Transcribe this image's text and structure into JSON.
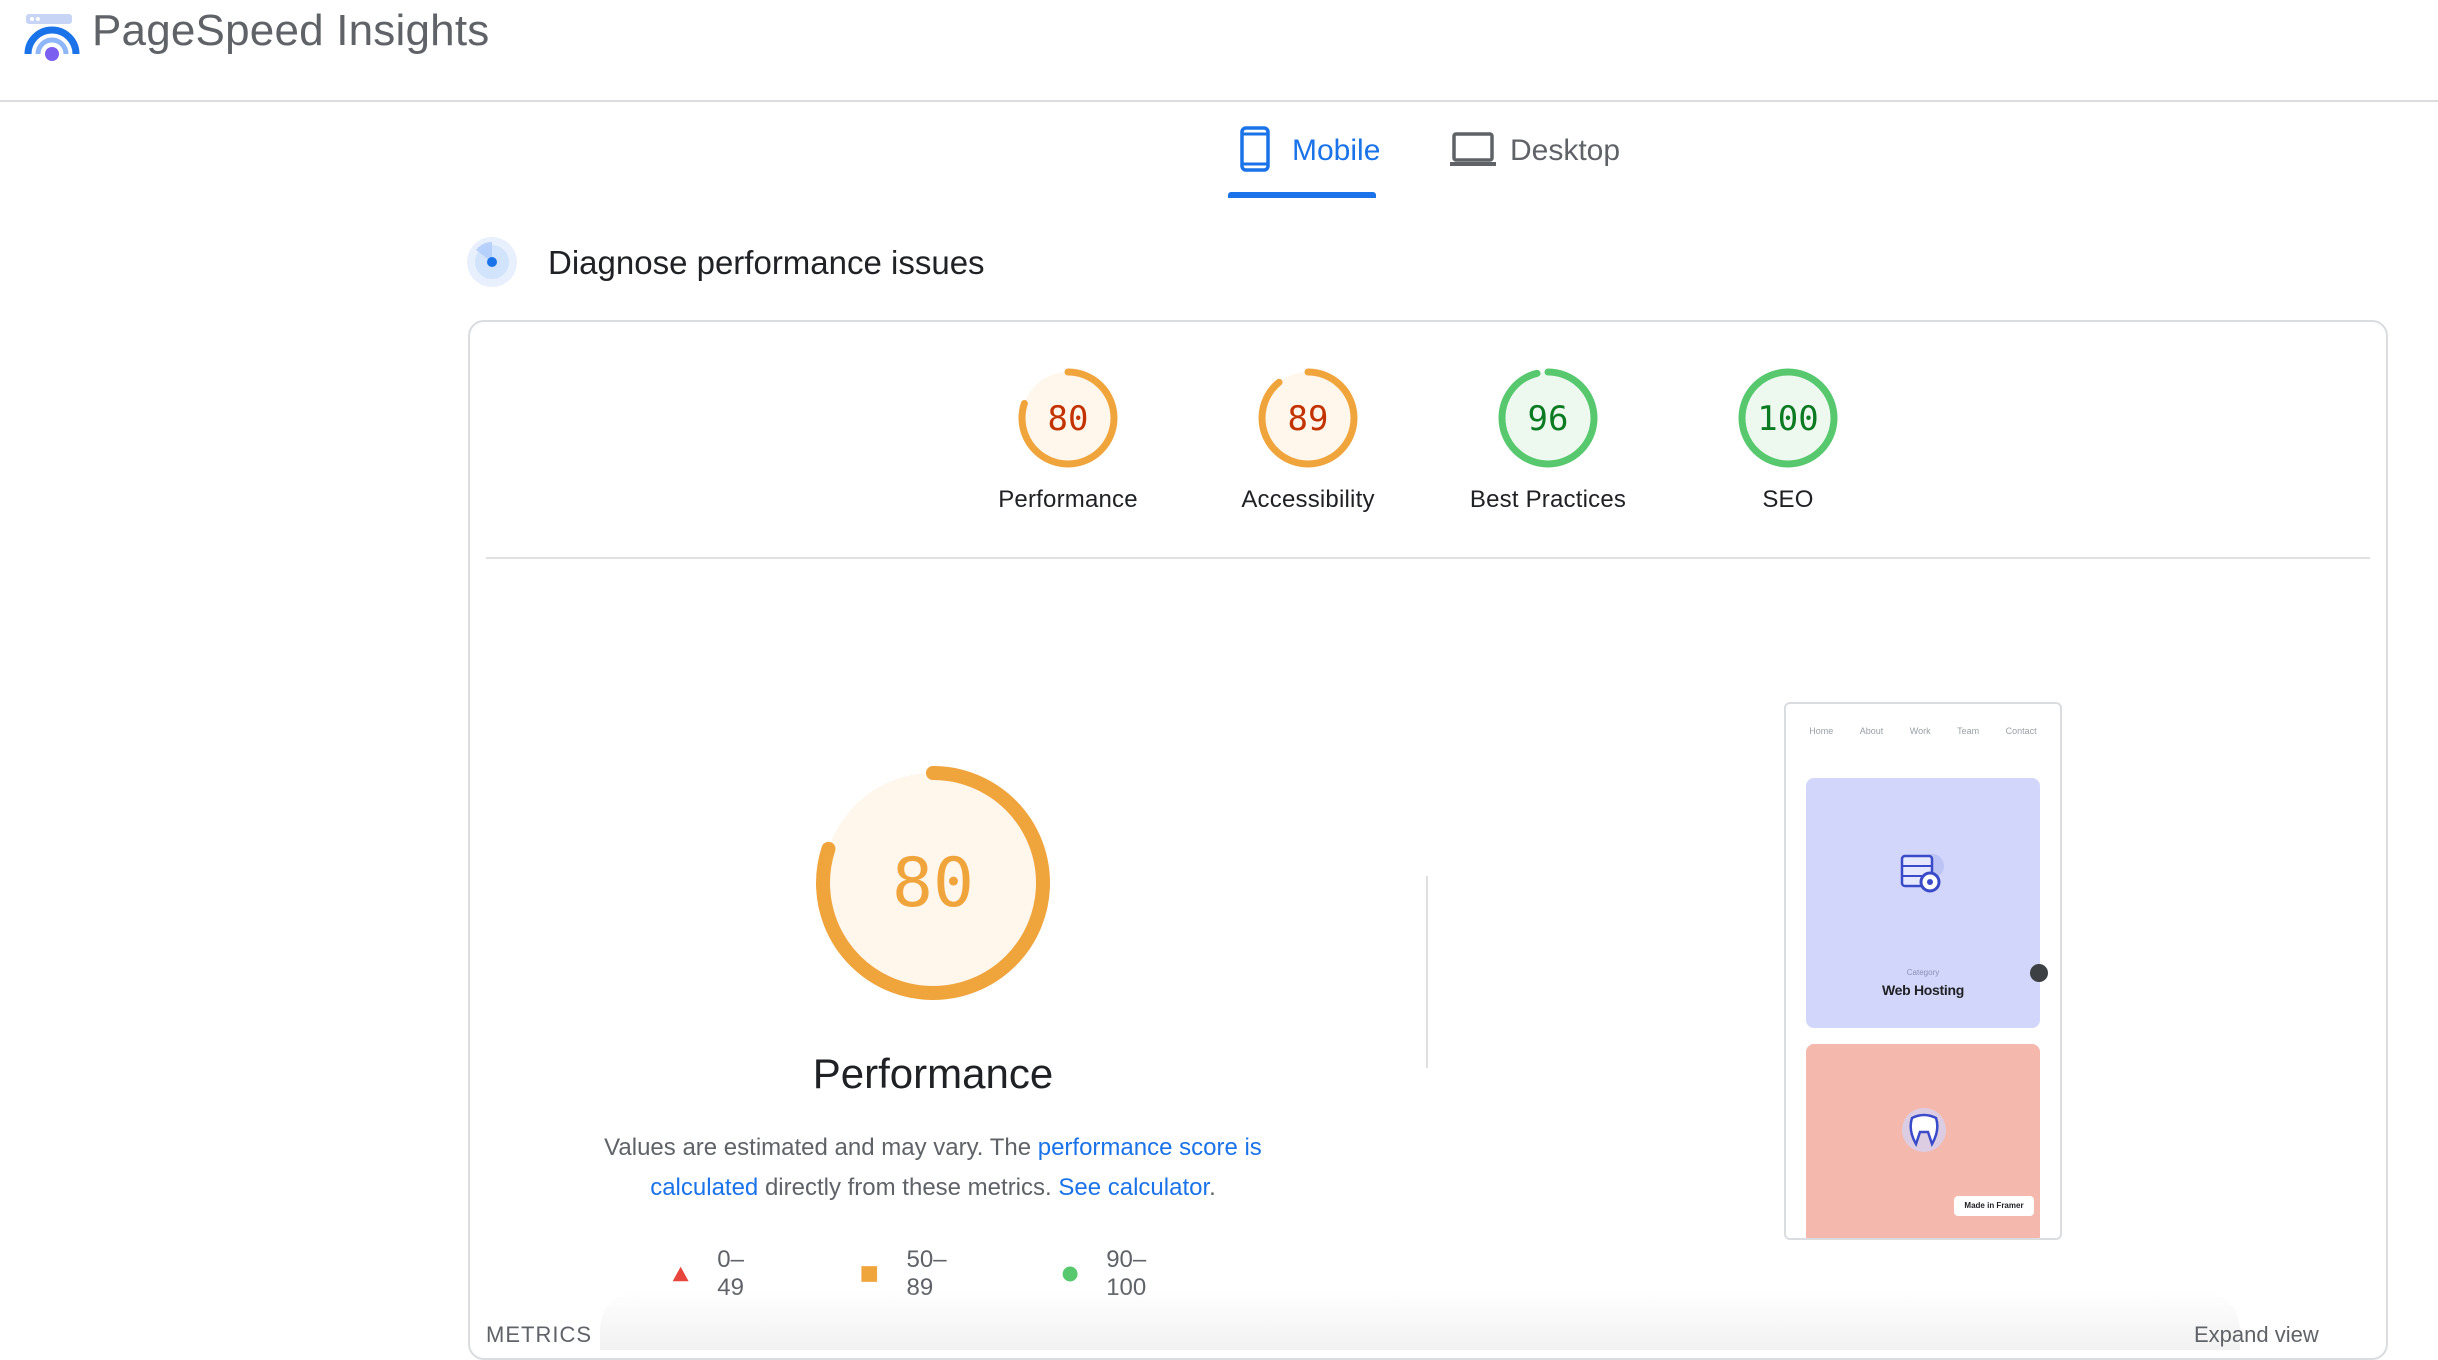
{
  "header": {
    "title": "PageSpeed Insights",
    "logo_icon": "pagespeed-logo-icon"
  },
  "tabs": [
    {
      "label": "Mobile",
      "icon": "smartphone-icon",
      "active": true
    },
    {
      "label": "Desktop",
      "icon": "laptop-icon",
      "active": false
    }
  ],
  "section": {
    "title": "Diagnose performance issues",
    "icon": "radar-icon"
  },
  "scores": [
    {
      "label": "Performance",
      "value": 80,
      "status": "average"
    },
    {
      "label": "Accessibility",
      "value": 89,
      "status": "average"
    },
    {
      "label": "Best Practices",
      "value": 96,
      "status": "pass"
    },
    {
      "label": "SEO",
      "value": 100,
      "status": "pass"
    }
  ],
  "colors": {
    "average": "#f0a43c",
    "average_text": "#c33300",
    "average_fill": "#fff6ec",
    "pass": "#57c86e",
    "pass_text": "#0c7a22",
    "pass_fill": "#edf9ef",
    "fail": "#e8453c",
    "accent": "#1a73e8"
  },
  "performance": {
    "score": "80",
    "title": "Performance",
    "desc_prefix": "Values are estimated and may vary. The ",
    "link_score": "performance score is calculated",
    "desc_middle": " directly from these metrics. ",
    "link_calculator": "See calculator",
    "desc_suffix": "."
  },
  "legend": [
    {
      "range": "0–49",
      "shape": "triangle",
      "color": "#e8453c"
    },
    {
      "range": "50–89",
      "shape": "square",
      "color": "#f0a43c"
    },
    {
      "range": "90–100",
      "shape": "circle",
      "color": "#57c86e"
    }
  ],
  "screenshot": {
    "nav": [
      "Home",
      "About",
      "Work",
      "Team",
      "Contact"
    ],
    "category_label": "Category",
    "heading": "Web Hosting",
    "badge": "Made in Framer"
  },
  "metrics": {
    "label": "METRICS",
    "expand": "Expand view"
  }
}
